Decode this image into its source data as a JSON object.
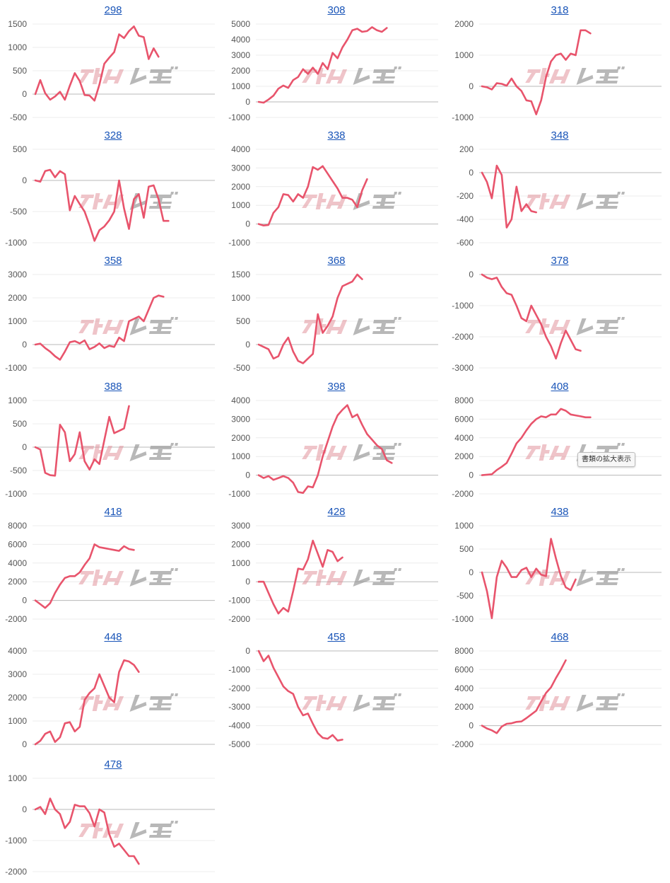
{
  "tooltip": "書類の拡大表示",
  "watermark": "みんレポ",
  "style": {
    "line_color": "#e8546c",
    "zero_color": "#b8b8b8",
    "grid_color": "#ececec",
    "title_color": "#1a55b8"
  },
  "chart_data": [
    {
      "type": "line",
      "title": "298",
      "ylim": [
        -500,
        1500
      ],
      "yticks": [
        -500,
        0,
        500,
        1000,
        1500
      ],
      "values": [
        0,
        300,
        20,
        -120,
        -50,
        50,
        -120,
        180,
        450,
        280,
        -20,
        -30,
        -140,
        200,
        650,
        780,
        900,
        1280,
        1200,
        1350,
        1450,
        1250,
        1220,
        750,
        980,
        800
      ]
    },
    {
      "type": "line",
      "title": "308",
      "ylim": [
        -1000,
        5000
      ],
      "yticks": [
        -1000,
        0,
        1000,
        2000,
        3000,
        4000,
        5000
      ],
      "values": [
        0,
        -50,
        150,
        400,
        850,
        1050,
        900,
        1400,
        1600,
        2100,
        1800,
        2200,
        1800,
        2500,
        2100,
        3150,
        2800,
        3500,
        4000,
        4600,
        4700,
        4500,
        4550,
        4800,
        4600,
        4500,
        4750
      ]
    },
    {
      "type": "line",
      "title": "318",
      "ylim": [
        -1000,
        2000
      ],
      "yticks": [
        -1000,
        0,
        1000,
        2000
      ],
      "values": [
        0,
        -30,
        -100,
        100,
        80,
        20,
        250,
        0,
        -150,
        -450,
        -480,
        -900,
        -450,
        300,
        800,
        1000,
        1050,
        850,
        1050,
        1000,
        1800,
        1800,
        1700
      ]
    },
    {
      "type": "line",
      "title": "328",
      "ylim": [
        -1000,
        500
      ],
      "yticks": [
        -1000,
        -500,
        0,
        500
      ],
      "values": [
        0,
        -20,
        150,
        170,
        50,
        150,
        100,
        -480,
        -250,
        -380,
        -500,
        -720,
        -970,
        -800,
        -740,
        -640,
        -500,
        0,
        -450,
        -780,
        -300,
        -220,
        -600,
        -100,
        -80,
        -300,
        -650,
        -650
      ]
    },
    {
      "type": "line",
      "title": "338",
      "ylim": [
        -1000,
        4000
      ],
      "yticks": [
        -1000,
        0,
        1000,
        2000,
        3000,
        4000
      ],
      "values": [
        0,
        -80,
        -50,
        600,
        900,
        1600,
        1550,
        1200,
        1600,
        1400,
        2000,
        3050,
        2900,
        3100,
        2700,
        2300,
        1900,
        1400,
        1400,
        1300,
        900,
        1800,
        2400
      ]
    },
    {
      "type": "line",
      "title": "348",
      "ylim": [
        -600,
        200
      ],
      "yticks": [
        -600,
        -400,
        -200,
        0,
        200
      ],
      "values": [
        0,
        -80,
        -220,
        60,
        -20,
        -470,
        -400,
        -120,
        -330,
        -270,
        -330,
        -340
      ]
    },
    {
      "type": "line",
      "title": "358",
      "ylim": [
        -1000,
        3000
      ],
      "yticks": [
        -1000,
        0,
        1000,
        2000,
        3000
      ],
      "values": [
        0,
        40,
        -150,
        -300,
        -500,
        -650,
        -300,
        100,
        150,
        50,
        180,
        -200,
        -100,
        50,
        -150,
        -50,
        -100,
        300,
        150,
        1000,
        1100,
        1200,
        1000,
        1500,
        2000,
        2100,
        2050
      ]
    },
    {
      "type": "line",
      "title": "368",
      "ylim": [
        -500,
        1500
      ],
      "yticks": [
        -500,
        0,
        500,
        1000,
        1500
      ],
      "values": [
        0,
        -50,
        -100,
        -300,
        -250,
        0,
        150,
        -150,
        -350,
        -400,
        -300,
        -200,
        650,
        250,
        400,
        600,
        1000,
        1250,
        1300,
        1350,
        1500,
        1400
      ]
    },
    {
      "type": "line",
      "title": "378",
      "ylim": [
        -3000,
        0
      ],
      "yticks": [
        -3000,
        -2000,
        -1000,
        0
      ],
      "values": [
        0,
        -100,
        -150,
        -100,
        -400,
        -600,
        -650,
        -1000,
        -1400,
        -1500,
        -1000,
        -1300,
        -1600,
        -2000,
        -2300,
        -2700,
        -2200,
        -1800,
        -2100,
        -2400,
        -2450
      ]
    },
    {
      "type": "line",
      "title": "388",
      "ylim": [
        -1000,
        1000
      ],
      "yticks": [
        -1000,
        -500,
        0,
        500,
        1000
      ],
      "values": [
        0,
        -50,
        -550,
        -600,
        -610,
        480,
        320,
        -300,
        -150,
        320,
        -300,
        -480,
        -260,
        -360,
        150,
        650,
        300,
        350,
        400,
        880
      ]
    },
    {
      "type": "line",
      "title": "398",
      "ylim": [
        -1000,
        4000
      ],
      "yticks": [
        -1000,
        0,
        1000,
        2000,
        3000,
        4000
      ],
      "values": [
        0,
        -150,
        -50,
        -250,
        -150,
        -50,
        -150,
        -400,
        -900,
        -950,
        -600,
        -650,
        0,
        1000,
        1800,
        2600,
        3200,
        3500,
        3750,
        3100,
        3250,
        2700,
        2200,
        1900,
        1600,
        1400,
        800,
        650
      ]
    },
    {
      "type": "line",
      "title": "408",
      "ylim": [
        -2000,
        8000
      ],
      "yticks": [
        -2000,
        0,
        2000,
        4000,
        6000,
        8000
      ],
      "values": [
        0,
        50,
        100,
        550,
        900,
        1300,
        2300,
        3400,
        4000,
        4800,
        5500,
        6000,
        6300,
        6200,
        6500,
        6500,
        7100,
        6900,
        6500,
        6400,
        6300,
        6200,
        6200
      ]
    },
    {
      "type": "line",
      "title": "418",
      "ylim": [
        -2000,
        8000
      ],
      "yticks": [
        -2000,
        0,
        2000,
        4000,
        6000,
        8000
      ],
      "values": [
        0,
        -400,
        -800,
        -300,
        800,
        1700,
        2400,
        2600,
        2600,
        3000,
        3800,
        4500,
        6000,
        5700,
        5600,
        5500,
        5400,
        5300,
        5800,
        5500,
        5400
      ]
    },
    {
      "type": "line",
      "title": "428",
      "ylim": [
        -2000,
        3000
      ],
      "yticks": [
        -2000,
        -1000,
        0,
        1000,
        2000,
        3000
      ],
      "values": [
        0,
        0,
        -600,
        -1200,
        -1700,
        -1400,
        -1600,
        -500,
        700,
        650,
        1200,
        2200,
        1500,
        800,
        1700,
        1600,
        1100,
        1300
      ]
    },
    {
      "type": "line",
      "title": "438",
      "ylim": [
        -1000,
        1000
      ],
      "yticks": [
        -1000,
        -500,
        0,
        500,
        1000
      ],
      "values": [
        0,
        -400,
        -980,
        -100,
        250,
        100,
        -100,
        -100,
        50,
        100,
        -100,
        80,
        -50,
        -80,
        720,
        300,
        -80,
        -320,
        -380,
        -150
      ]
    },
    {
      "type": "line",
      "title": "448",
      "ylim": [
        0,
        4000
      ],
      "yticks": [
        0,
        1000,
        2000,
        3000,
        4000
      ],
      "values": [
        0,
        150,
        450,
        550,
        100,
        300,
        900,
        950,
        550,
        750,
        1900,
        2200,
        2400,
        3000,
        2500,
        2000,
        1800,
        3100,
        3600,
        3550,
        3400,
        3100
      ]
    },
    {
      "type": "line",
      "title": "458",
      "ylim": [
        -5000,
        0
      ],
      "yticks": [
        -5000,
        -4000,
        -3000,
        -2000,
        -1000,
        0
      ],
      "values": [
        0,
        -550,
        -250,
        -900,
        -1400,
        -1900,
        -2150,
        -2300,
        -3000,
        -3450,
        -3350,
        -3900,
        -4400,
        -4650,
        -4700,
        -4500,
        -4800,
        -4750
      ]
    },
    {
      "type": "line",
      "title": "468",
      "ylim": [
        -2000,
        8000
      ],
      "yticks": [
        -2000,
        0,
        2000,
        4000,
        6000,
        8000
      ],
      "values": [
        0,
        -300,
        -500,
        -800,
        -100,
        200,
        250,
        400,
        450,
        800,
        1200,
        1600,
        2600,
        3500,
        4100,
        5100,
        6000,
        7000
      ]
    },
    {
      "type": "line",
      "title": "478",
      "ylim": [
        -2000,
        1000
      ],
      "yticks": [
        -2000,
        -1000,
        0,
        1000
      ],
      "values": [
        0,
        80,
        -150,
        350,
        0,
        -150,
        -600,
        -400,
        150,
        100,
        100,
        -120,
        -550,
        0,
        -100,
        -800,
        -1200,
        -1100,
        -1300,
        -1500,
        -1500,
        -1750
      ]
    }
  ]
}
